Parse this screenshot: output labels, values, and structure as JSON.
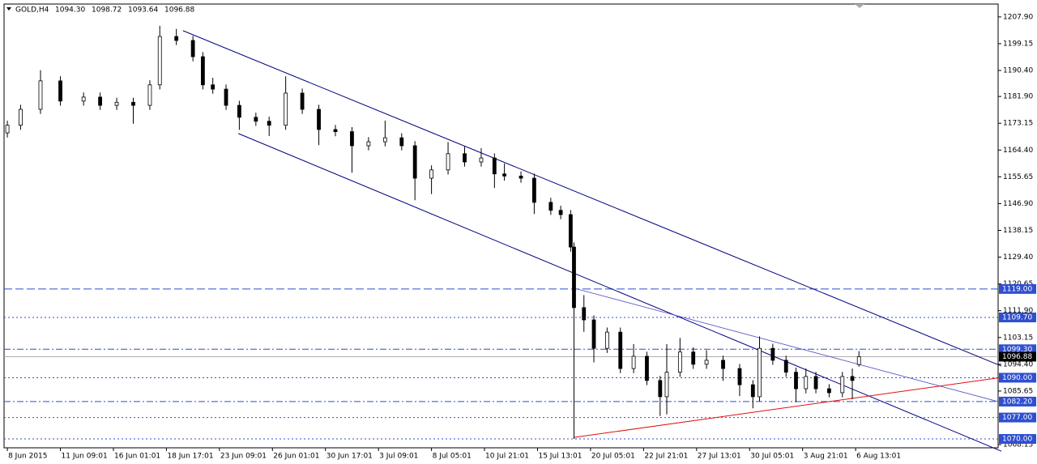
{
  "chart_data": {
    "type": "candlestick",
    "title": "GOLD,H4",
    "header_ohlc": [
      "1094.30",
      "1098.72",
      "1093.64",
      "1096.88"
    ],
    "x": [
      0,
      4,
      10,
      16,
      23,
      28,
      33,
      38,
      43,
      46,
      51,
      56,
      59,
      62,
      66,
      70,
      75,
      79,
      84,
      89,
      94,
      99,
      104,
      109,
      114,
      119,
      123,
      128,
      133,
      138,
      143,
      147,
      150,
      155,
      159,
      164,
      167,
      170,
      171,
      174,
      177,
      181,
      185,
      189,
      193,
      197,
      199,
      203,
      207,
      211,
      216,
      221,
      225,
      227,
      231,
      235,
      238,
      241,
      244,
      248,
      252,
      255,
      257
    ],
    "open": [
      1170.0,
      1172.5,
      1177.7,
      1187.0,
      1180.4,
      1181.7,
      1179.0,
      1180.0,
      1179.0,
      1185.7,
      1201.5,
      1200.2,
      1194.9,
      1185.7,
      1184.3,
      1179.0,
      1175.1,
      1173.8,
      1172.5,
      1183.0,
      1177.7,
      1171.1,
      1170.4,
      1165.8,
      1167.1,
      1168.4,
      1165.8,
      1155.2,
      1157.9,
      1163.2,
      1160.5,
      1161.8,
      1156.6,
      1155.9,
      1155.2,
      1147.3,
      1144.7,
      1143.3,
      1132.7,
      1112.9,
      1108.9,
      1099.6,
      1104.9,
      1093.0,
      1097.0,
      1089.1,
      1083.8,
      1091.8,
      1098.4,
      1094.4,
      1095.7,
      1093.0,
      1087.7,
      1083.8,
      1099.6,
      1095.7,
      1091.8,
      1086.4,
      1090.4,
      1086.4,
      1085.1,
      1090.4,
      1094.3
    ],
    "high": [
      1174.0,
      1179.2,
      1190.5,
      1188.5,
      1183.2,
      1183.2,
      1181.5,
      1181.5,
      1187.2,
      1205.0,
      1204.0,
      1201.7,
      1196.4,
      1188.0,
      1185.8,
      1180.5,
      1176.6,
      1175.3,
      1188.5,
      1184.5,
      1179.2,
      1172.6,
      1171.9,
      1168.6,
      1174.0,
      1169.9,
      1167.3,
      1159.4,
      1167.0,
      1165.5,
      1165.0,
      1163.3,
      1160.0,
      1157.4,
      1156.7,
      1148.8,
      1146.2,
      1144.8,
      1134.2,
      1117.0,
      1110.4,
      1106.4,
      1106.4,
      1101.0,
      1098.5,
      1090.6,
      1101.0,
      1103.0,
      1099.9,
      1099.0,
      1097.2,
      1094.5,
      1089.2,
      1103.5,
      1101.1,
      1097.2,
      1093.3,
      1093.0,
      1091.9,
      1087.9,
      1091.9,
      1093.0,
      1098.72
    ],
    "low": [
      1168.5,
      1171.0,
      1176.2,
      1178.9,
      1178.9,
      1177.5,
      1177.5,
      1173.0,
      1177.5,
      1184.2,
      1198.7,
      1193.4,
      1184.2,
      1182.8,
      1177.5,
      1171.0,
      1172.3,
      1169.0,
      1171.0,
      1176.2,
      1166.0,
      1168.9,
      1157.0,
      1164.3,
      1165.6,
      1164.3,
      1148.0,
      1150.0,
      1156.4,
      1159.0,
      1159.0,
      1152.0,
      1154.4,
      1153.7,
      1143.5,
      1143.2,
      1141.8,
      1131.2,
      1070.0,
      1105.0,
      1095.0,
      1098.1,
      1091.5,
      1091.5,
      1087.6,
      1077.5,
      1078.0,
      1090.3,
      1092.9,
      1092.9,
      1089.0,
      1084.0,
      1080.0,
      1082.3,
      1094.2,
      1090.3,
      1082.0,
      1084.9,
      1084.9,
      1083.6,
      1083.6,
      1083.0,
      1093.64
    ],
    "close": [
      1172.5,
      1177.7,
      1187.0,
      1180.4,
      1181.7,
      1179.0,
      1180.0,
      1179.0,
      1185.7,
      1201.5,
      1200.2,
      1194.9,
      1185.7,
      1184.3,
      1179.0,
      1175.1,
      1173.8,
      1172.5,
      1183.0,
      1177.7,
      1171.1,
      1170.4,
      1165.8,
      1167.1,
      1168.4,
      1165.8,
      1155.2,
      1157.9,
      1163.2,
      1160.5,
      1161.8,
      1156.6,
      1155.9,
      1155.2,
      1147.3,
      1144.7,
      1143.3,
      1132.7,
      1112.9,
      1108.9,
      1099.6,
      1104.9,
      1093.0,
      1097.0,
      1089.1,
      1083.8,
      1091.8,
      1098.4,
      1094.4,
      1095.7,
      1093.0,
      1087.7,
      1083.8,
      1099.6,
      1095.7,
      1091.8,
      1086.4,
      1090.4,
      1086.4,
      1085.1,
      1090.4,
      1089.1,
      1096.88
    ],
    "up_color": "#ffffff",
    "down_color": "#000000",
    "xlim": [
      -1,
      299
    ],
    "ylim": [
      1067.1,
      1212.1
    ],
    "xticks": [
      {
        "value": 0,
        "label": "8 Jun 2015"
      },
      {
        "value": 16,
        "label": "11 Jun 09:01"
      },
      {
        "value": 32,
        "label": "16 Jun 01:01"
      },
      {
        "value": 48,
        "label": "18 Jun 17:01"
      },
      {
        "value": 64,
        "label": "23 Jun 09:01"
      },
      {
        "value": 80,
        "label": "26 Jun 01:01"
      },
      {
        "value": 96,
        "label": "30 Jun 17:01"
      },
      {
        "value": 112,
        "label": "3 Jul 09:01"
      },
      {
        "value": 128,
        "label": "8 Jul 05:01"
      },
      {
        "value": 144,
        "label": "10 Jul 21:01"
      },
      {
        "value": 160,
        "label": "15 Jul 13:01"
      },
      {
        "value": 176,
        "label": "20 Jul 05:01"
      },
      {
        "value": 192,
        "label": "22 Jul 21:01"
      },
      {
        "value": 208,
        "label": "27 Jul 13:01"
      },
      {
        "value": 224,
        "label": "30 Jul 05:01"
      },
      {
        "value": 240,
        "label": "3 Aug 21:01"
      },
      {
        "value": 256,
        "label": "6 Aug 13:01"
      }
    ],
    "yticks": [
      {
        "value": 1207.9,
        "label": "1207.90"
      },
      {
        "value": 1199.15,
        "label": "1199.15"
      },
      {
        "value": 1190.4,
        "label": "1190.40"
      },
      {
        "value": 1181.9,
        "label": "1181.90"
      },
      {
        "value": 1173.15,
        "label": "1173.15"
      },
      {
        "value": 1164.4,
        "label": "1164.40"
      },
      {
        "value": 1155.65,
        "label": "1155.65"
      },
      {
        "value": 1146.9,
        "label": "1146.90"
      },
      {
        "value": 1138.15,
        "label": "1138.15"
      },
      {
        "value": 1129.4,
        "label": "1129.40"
      },
      {
        "value": 1120.65,
        "label": "1120.65"
      },
      {
        "value": 1111.9,
        "label": "1111.90"
      },
      {
        "value": 1103.15,
        "label": "1103.15"
      },
      {
        "value": 1094.4,
        "label": "1094.40"
      },
      {
        "value": 1085.65,
        "label": "1085.65"
      },
      {
        "value": 1068.15,
        "label": "1068.15"
      }
    ],
    "levels": [
      {
        "value": 1119,
        "label": "1119.00",
        "style": "dash",
        "color": "#2f4fd0"
      },
      {
        "value": 1109.7,
        "label": "1109.70",
        "style": "dot",
        "color": "#2f4fd0"
      },
      {
        "value": 1099.3,
        "label": "1099.30",
        "style": "dashdot",
        "color": "#2f4fd0"
      },
      {
        "value": 1096.88,
        "label": "1096.88",
        "style": "solid",
        "color": "#000000"
      },
      {
        "value": 1090,
        "label": "1090.00",
        "style": "dot",
        "color": "#2f4fd0"
      },
      {
        "value": 1082.2,
        "label": "1082.20",
        "style": "dashdot",
        "color": "#2f4fd0"
      },
      {
        "value": 1077,
        "label": "1077.00",
        "style": "dot",
        "color": "#2f4fd0"
      },
      {
        "value": 1070,
        "label": "1070.00",
        "style": "dot",
        "color": "#2f4fd0"
      }
    ],
    "trendlines": [
      {
        "x": [
          53,
          300
        ],
        "y": [
          1203.4,
          1093.8
        ],
        "color": "#000080",
        "width": 1
      },
      {
        "x": [
          69.7,
          300
        ],
        "y": [
          1169.8,
          1066.0
        ],
        "color": "#000080",
        "width": 1
      },
      {
        "x": [
          171.9,
          300
        ],
        "y": [
          1119.0,
          1081.9
        ],
        "color": "#5050c8",
        "width": 0.8
      },
      {
        "x": [
          171.1,
          300
        ],
        "y": [
          1070.5,
          1090.1
        ],
        "color": "#e01010",
        "width": 1
      }
    ]
  }
}
